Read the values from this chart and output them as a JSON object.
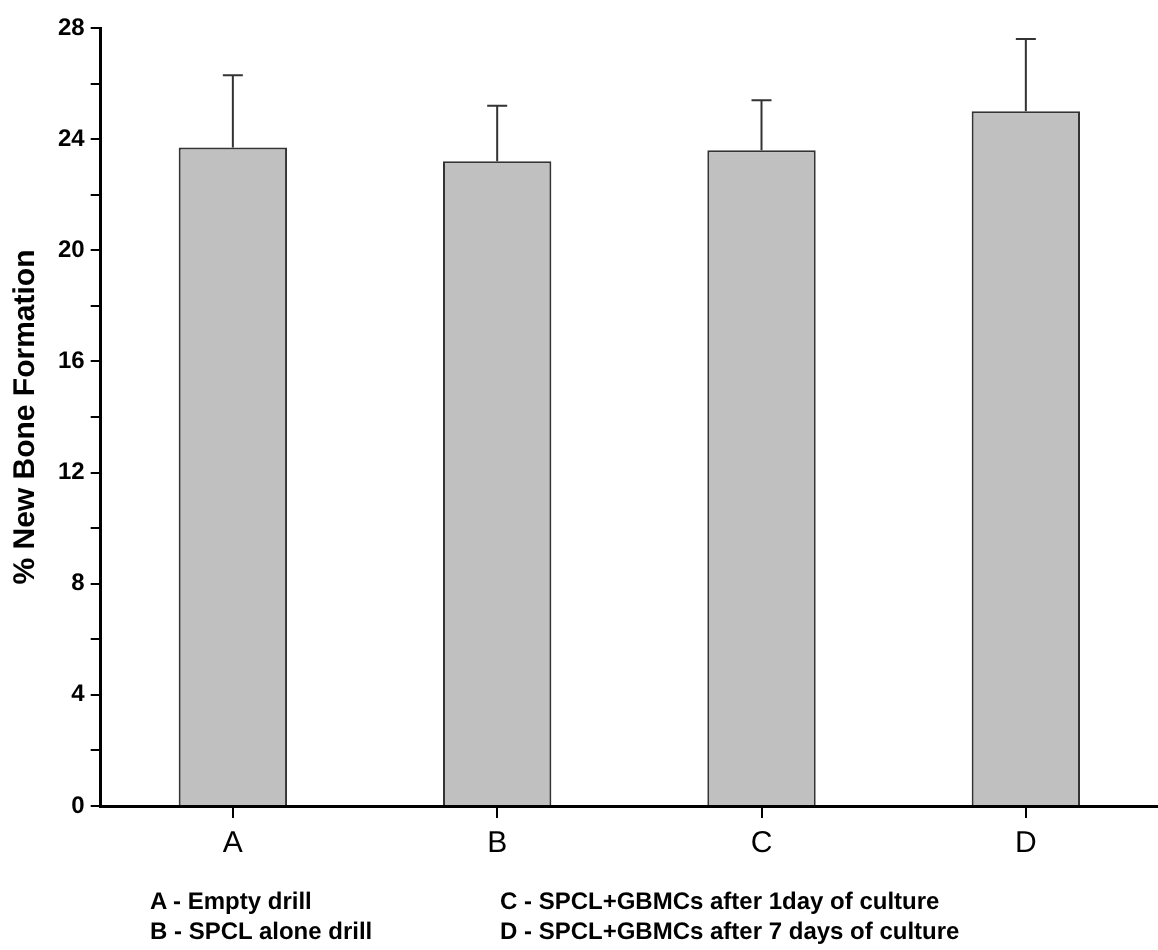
{
  "chart_data": {
    "type": "bar",
    "ylabel": "% New Bone Formation",
    "categories": [
      "A",
      "B",
      "C",
      "D"
    ],
    "values": [
      23.7,
      23.2,
      23.6,
      25.0
    ],
    "errors": [
      [
        23.7,
        26.3
      ],
      [
        23.2,
        25.2
      ],
      [
        23.6,
        25.4
      ],
      [
        25.0,
        27.6
      ]
    ],
    "color": "#c0c0c0",
    "ylim": [
      0,
      28
    ],
    "yticks": [
      0,
      {
        "value": 2,
        "label": null
      },
      4,
      {
        "value": 6,
        "label": null
      },
      8,
      {
        "value": 10,
        "label": null
      },
      12,
      {
        "value": 14,
        "label": null
      },
      16,
      {
        "value": 18,
        "label": null
      },
      20,
      {
        "value": 22,
        "label": null
      },
      24,
      {
        "value": 26,
        "label": null
      },
      28
    ],
    "grid": false,
    "legend": false,
    "annotations": [
      "A - Empty drill",
      "C - SPCL+GBMCs after 1day of culture",
      "B - SPCL alone drill",
      "D - SPCL+GBMCs after 7 days of culture"
    ]
  }
}
